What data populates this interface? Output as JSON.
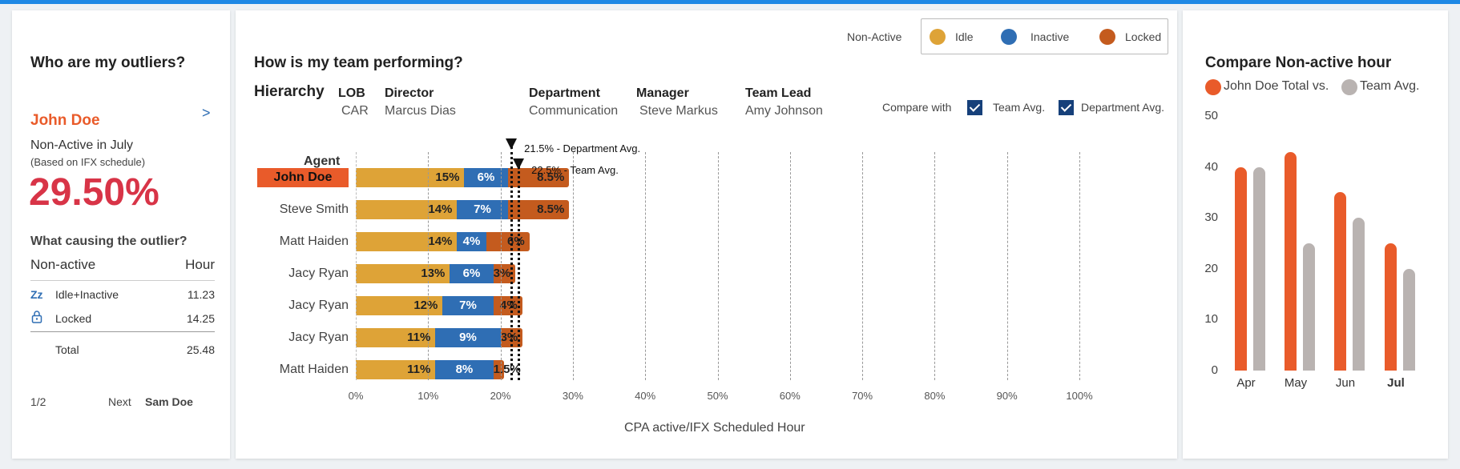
{
  "colors": {
    "idle": "#dea337",
    "inactive": "#2f6eb4",
    "locked": "#c45b1e",
    "accent": "#e95b2a",
    "gray": "#b9b3b1",
    "pct_red": "#d83447"
  },
  "outliers": {
    "title": "Who are my outliers?",
    "name": "John Doe",
    "next_icon": "chevron-right-icon",
    "period": "Non-Active in July",
    "basis": "(Based on IFX schedule)",
    "percent": "29.50%",
    "cause_title": "What causing the outlier?",
    "col_left": "Non-active",
    "col_right": "Hour",
    "rows": [
      {
        "icon": "zz-sleep-icon",
        "icon_text": "Zz",
        "label": "Idle+Inactive",
        "value": "11.23"
      },
      {
        "icon": "lock-icon",
        "icon_text": "",
        "label": "Locked",
        "value": "14.25"
      },
      {
        "icon": "",
        "icon_text": "",
        "label": "Total",
        "value": "25.48"
      }
    ],
    "pager": "1/2",
    "next_label": "Next",
    "next_name": "Sam Doe"
  },
  "team": {
    "title": "How is my team performing?",
    "legend": {
      "label": "Non-Active",
      "items": [
        "Idle",
        "Inactive",
        "Locked"
      ]
    },
    "hierarchy": {
      "title": "Hierarchy",
      "cols": [
        {
          "label": "LOB",
          "value": "CAR"
        },
        {
          "label": "Director",
          "value": "Marcus Dias"
        },
        {
          "label": "Department",
          "value": "Communication"
        },
        {
          "label": "Manager",
          "value": "Steve Markus"
        },
        {
          "label": "Team Lead",
          "value": "Amy Johnson"
        }
      ]
    },
    "compare": {
      "label": "Compare with",
      "options": [
        {
          "label": "Team Avg.",
          "checked": true
        },
        {
          "label": "Department Avg.",
          "checked": true
        }
      ]
    },
    "agent_header": "Agent",
    "refs": [
      {
        "label": "21.5% - Department  Avg.",
        "value": 21.5
      },
      {
        "label": "22.5% - Team Avg.",
        "value": 22.5
      }
    ],
    "xlabel": "CPA active/IFX Scheduled Hour"
  },
  "chart_data": [
    {
      "type": "bar",
      "orientation": "horizontal",
      "stacked": true,
      "categories": [
        "John Doe",
        "Steve Smith",
        "Matt Haiden",
        "Jacy Ryan",
        "Jacy Ryan",
        "Jacy Ryan",
        "Matt Haiden"
      ],
      "highlight": "John Doe",
      "series": [
        {
          "name": "Idle",
          "values": [
            15,
            14,
            14,
            13,
            12,
            11,
            11
          ],
          "labels": [
            "15%",
            "14%",
            "14%",
            "13%",
            "12%",
            "11%",
            "11%"
          ]
        },
        {
          "name": "Inactive",
          "values": [
            6,
            7,
            4,
            6,
            7,
            9,
            8
          ],
          "labels": [
            "6%",
            "7%",
            "4%",
            "6%",
            "7%",
            "9%",
            "8%"
          ]
        },
        {
          "name": "Locked",
          "values": [
            8.5,
            8.5,
            6,
            3,
            4,
            3,
            1.5
          ],
          "labels": [
            "8.5%",
            "8.5%",
            "6%",
            "3%",
            "4%",
            "3%",
            "1.5%"
          ]
        }
      ],
      "xticks": [
        "0%",
        "10%",
        "20%",
        "30%",
        "40%",
        "50%",
        "60%",
        "70%",
        "80%",
        "90%",
        "100%"
      ],
      "xlim": [
        0,
        100
      ],
      "xlabel": "CPA active/IFX Scheduled Hour",
      "grid": true
    },
    {
      "type": "bar",
      "title": "Compare Non-active hour",
      "legend": [
        "John Doe Total vs.",
        "Team Avg."
      ],
      "categories": [
        "Apr",
        "May",
        "Jun",
        "Jul"
      ],
      "highlight_category": "Jul",
      "series": [
        {
          "name": "John Doe Total vs.",
          "values": [
            40,
            43,
            35,
            25
          ]
        },
        {
          "name": "Team Avg.",
          "values": [
            40,
            25,
            30,
            20
          ]
        }
      ],
      "yticks": [
        "0",
        "10",
        "20",
        "30",
        "40",
        "50"
      ],
      "ylim": [
        0,
        50
      ]
    }
  ]
}
